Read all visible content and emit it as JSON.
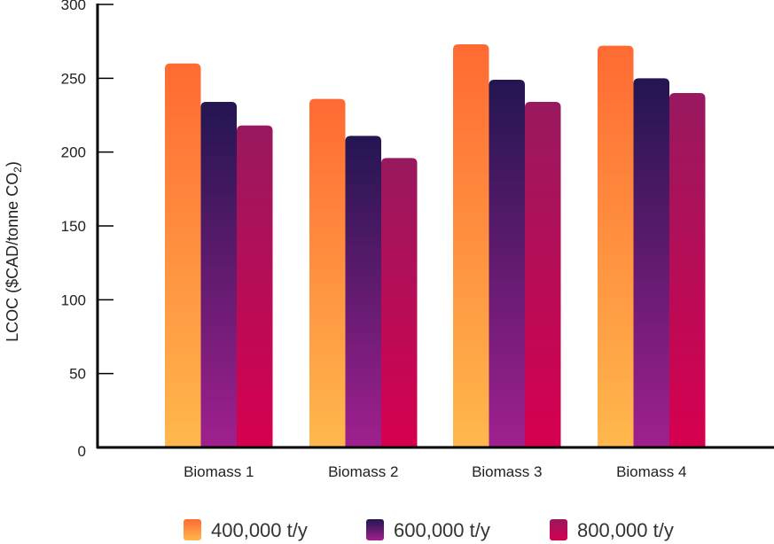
{
  "chart_data": {
    "type": "bar",
    "title": "",
    "xlabel": "",
    "ylabel": "LCOC ($CAD/tonne CO",
    "ylabel_sub": "2",
    "ylabel_close": ")",
    "ylim": [
      0,
      300
    ],
    "yticks": [
      0,
      50,
      100,
      150,
      200,
      250,
      300
    ],
    "ytick_labels": [
      "0",
      "50",
      "100",
      "150",
      "200",
      "250",
      "300"
    ],
    "categories": [
      "Biomass 1",
      "Biomass 2",
      "Biomass 3",
      "Biomass 4"
    ],
    "series": [
      {
        "name": "400,000 t/y",
        "values": [
          260,
          236,
          273,
          272
        ],
        "color_top": "#ff6a33",
        "color_bottom": "#ffb84d"
      },
      {
        "name": "600,000 t/y",
        "values": [
          234,
          211,
          249,
          250
        ],
        "color_top": "#231651",
        "color_bottom": "#a0208e"
      },
      {
        "name": "800,000 t/y",
        "values": [
          218,
          196,
          234,
          240
        ],
        "color_top": "#98195f",
        "color_bottom": "#d6004f"
      }
    ],
    "legend_position": "bottom",
    "grid": false
  }
}
